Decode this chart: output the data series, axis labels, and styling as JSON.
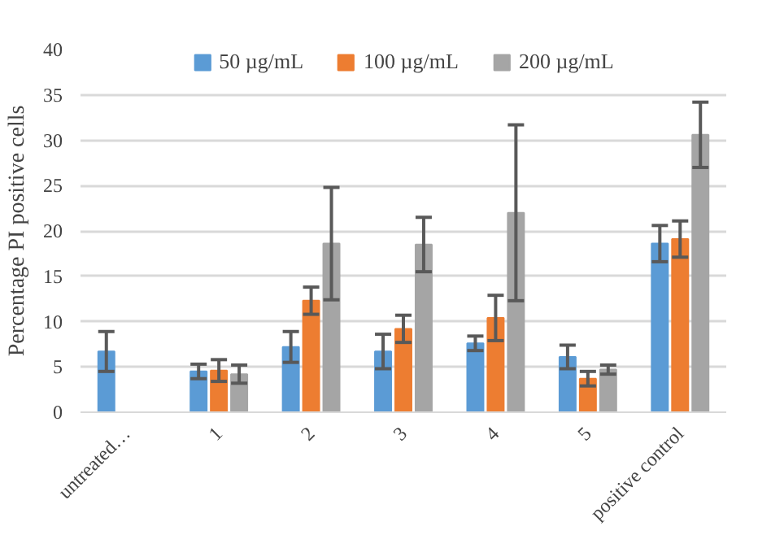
{
  "chart_data": {
    "type": "bar",
    "ylabel": "Percentage PI positive cells",
    "categories": [
      "untreated…",
      "1",
      "2",
      "3",
      "4",
      "5",
      "positive control"
    ],
    "series": [
      {
        "name": "50 µg/mL",
        "color": "#5b9bd5",
        "values": [
          6.7,
          4.5,
          7.2,
          6.7,
          7.6,
          6.1,
          18.6
        ],
        "errors": [
          2.2,
          0.8,
          1.7,
          1.9,
          0.8,
          1.3,
          2.0
        ]
      },
      {
        "name": "100 µg/mL",
        "color": "#ed7d31",
        "values": [
          null,
          4.6,
          12.3,
          9.2,
          10.4,
          3.7,
          19.1
        ],
        "errors": [
          null,
          1.2,
          1.5,
          1.5,
          2.5,
          0.8,
          2.0
        ]
      },
      {
        "name": "200 µg/mL",
        "color": "#a5a5a5",
        "values": [
          null,
          4.2,
          18.6,
          18.5,
          22,
          4.7,
          30.6
        ],
        "errors": [
          null,
          1.0,
          6.2,
          3.0,
          9.7,
          0.5,
          3.6
        ]
      }
    ],
    "ylim": [
      0,
      40
    ],
    "yticks": [
      0,
      5,
      10,
      15,
      20,
      25,
      30,
      35,
      40
    ],
    "grid": "y",
    "legend": "top"
  }
}
